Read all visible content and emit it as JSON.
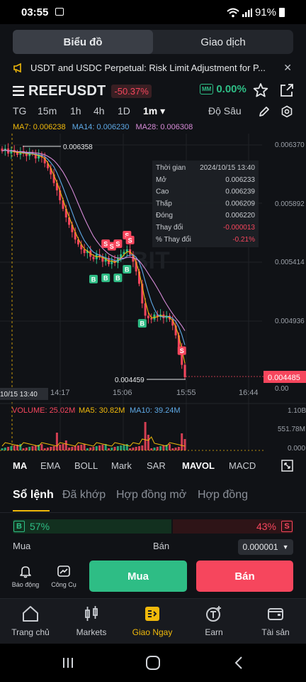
{
  "status_bar": {
    "time": "03:55",
    "battery": "91%"
  },
  "segment": {
    "chart_tab": "Biểu đồ",
    "trade_tab": "Giao dịch"
  },
  "notice": {
    "text": "USDT and USDC Perpetual: Risk Limit Adjustment for P...",
    "close": "✕"
  },
  "pair": {
    "symbol": "REEFUSDT",
    "change": "-50.37%",
    "mm_label": "MM",
    "mm_value": "0.00%"
  },
  "intervals": [
    "TG",
    "15m",
    "1h",
    "4h",
    "1D",
    "1m ▾"
  ],
  "depth_label": "Độ Sâu",
  "ma_legend": {
    "ma7": "MA7: 0.006238",
    "ma14": "MA14: 0.006230",
    "ma28": "MA28: 0.006308"
  },
  "tooltip": {
    "rows": [
      {
        "label": "Thời gian",
        "value": "2024/10/15 13:40"
      },
      {
        "label": "Mở",
        "value": "0.006233"
      },
      {
        "label": "Cao",
        "value": "0.006239"
      },
      {
        "label": "Thấp",
        "value": "0.006209"
      },
      {
        "label": "Đóng",
        "value": "0.006220"
      },
      {
        "label": "Thay đổi",
        "value": "-0.000013"
      },
      {
        "label": "% Thay đổi",
        "value": "-0.21%"
      }
    ]
  },
  "chart_data": {
    "type": "candlestick",
    "y_ticks": [
      "0.006370",
      "0.005892",
      "0.005414",
      "0.004936",
      "0.00"
    ],
    "x_ticks": [
      "10/15 13:40",
      "14:17",
      "15:06",
      "15:55",
      "16:44"
    ],
    "high_label": "0.006358",
    "low_label": "0.004459",
    "last_price": "0.004485",
    "volume_ticks": [
      "1.10B",
      "551.78M",
      "0.000"
    ],
    "volume_legend": {
      "volume": "VOLUME: 25.02M",
      "ma5": "MA5: 30.82M",
      "ma10": "MA10: 39.24M"
    },
    "watermark": "BIT",
    "close_path": [
      0.00632,
      0.00634,
      0.0063,
      0.00633,
      0.00631,
      0.00629,
      0.00632,
      0.0063,
      0.00628,
      0.00631,
      0.0063,
      0.00626,
      0.00629,
      0.00627,
      0.00622,
      0.00618,
      0.00613,
      0.00606,
      0.006,
      0.00592,
      0.00585,
      0.00578,
      0.00572,
      0.00566,
      0.0056,
      0.00556,
      0.00552,
      0.00549,
      0.00551,
      0.00546,
      0.00544,
      0.00548,
      0.00546,
      0.00542,
      0.00545,
      0.0054,
      0.00543,
      0.00541,
      0.00545,
      0.00548,
      0.0055,
      0.00552,
      0.00548,
      0.00542,
      0.00534,
      0.00524,
      0.00508,
      0.00498,
      0.00496,
      0.00495,
      0.00499,
      0.00497,
      0.00499,
      0.00496,
      0.00498,
      0.00495,
      0.0049,
      0.00482,
      0.00472,
      0.00458,
      0.00448
    ],
    "buy_markers": [
      "B",
      "B",
      "B",
      "B",
      "B"
    ],
    "sell_markers": [
      "S",
      "S",
      "S",
      "S",
      "S",
      "S"
    ]
  },
  "indicator_tabs": [
    "MA",
    "EMA",
    "BOLL",
    "Mark",
    "SAR",
    "MAVOL",
    "MACD"
  ],
  "order_tabs": [
    "Sổ lệnh",
    "Đã khớp",
    "Hợp đồng mở",
    "Hợp đồng"
  ],
  "ratio": {
    "buy_tag": "B",
    "buy_pct": "57%",
    "sell_pct": "43%",
    "sell_tag": "S",
    "buy_fraction": 0.57
  },
  "book_labels": {
    "buy": "Mua",
    "sell": "Bán",
    "step": "0.000001"
  },
  "tools": {
    "alert": "Báo động",
    "tools": "Công Cụ"
  },
  "actions": {
    "buy": "Mua",
    "sell": "Bán"
  },
  "bottom_nav": [
    "Trang chủ",
    "Markets",
    "Giao Ngay",
    "Earn",
    "Tài sản"
  ]
}
